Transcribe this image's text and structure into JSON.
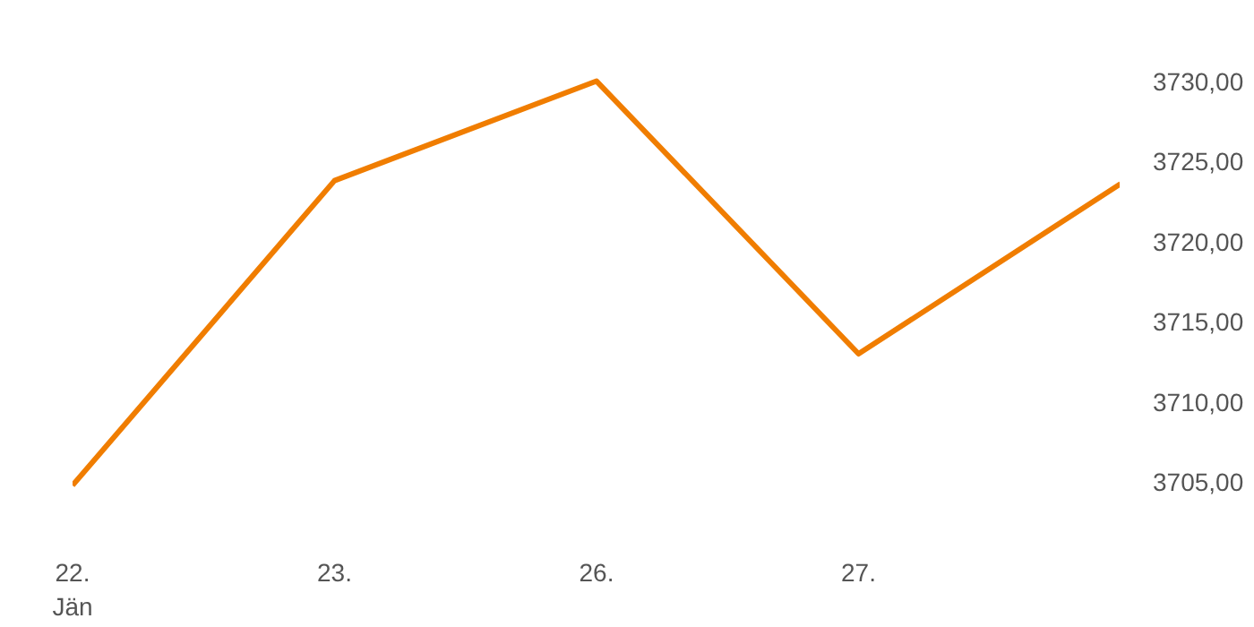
{
  "chart_data": {
    "type": "line",
    "categories": [
      "22.\nJän",
      "23.",
      "26.",
      "27.",
      null
    ],
    "series": [
      {
        "color": "#f07d00",
        "values": [
          3704.8,
          3723.8,
          3730.0,
          3713.0,
          3723.6
        ]
      }
    ],
    "yticks": [
      {
        "value": 3705,
        "label": "3705,00"
      },
      {
        "value": 3710,
        "label": "3710,00"
      },
      {
        "value": 3715,
        "label": "3715,00"
      },
      {
        "value": 3720,
        "label": "3720,00"
      },
      {
        "value": 3725,
        "label": "3725,00"
      },
      {
        "value": 3730,
        "label": "3730,00"
      }
    ],
    "ylim": [
      3701.5,
      3735
    ],
    "grid": false
  }
}
